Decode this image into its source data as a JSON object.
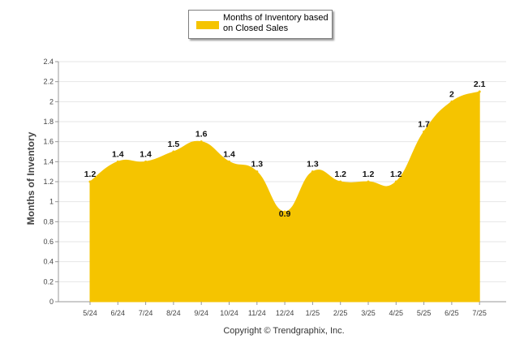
{
  "chart_data": {
    "type": "area",
    "categories": [
      "5/24",
      "6/24",
      "7/24",
      "8/24",
      "9/24",
      "10/24",
      "11/24",
      "12/24",
      "1/25",
      "2/25",
      "3/25",
      "4/25",
      "5/25",
      "6/25",
      "7/25"
    ],
    "values": [
      1.2,
      1.4,
      1.4,
      1.5,
      1.6,
      1.4,
      1.3,
      0.9,
      1.3,
      1.2,
      1.2,
      1.2,
      1.7,
      2,
      2.1
    ],
    "data_labels": [
      "1.2",
      "1.4",
      "1.4",
      "1.5",
      "1.6",
      "1.4",
      "1.3",
      "0.9",
      "1.3",
      "1.2",
      "1.2",
      "1.2",
      "1.7",
      "2",
      "2.1"
    ],
    "ylabel": "Months of Inventory",
    "ylim": [
      0,
      2.4
    ],
    "yticks": [
      "0",
      "0.2",
      "0.4",
      "0.6",
      "0.8",
      "1",
      "1.2",
      "1.4",
      "1.6",
      "1.8",
      "2",
      "2.2",
      "2.4"
    ],
    "grid": true,
    "legend": {
      "position": "top-center",
      "entries": [
        {
          "name": "Months of Inventory based on Closed Sales",
          "color": "#f5c400"
        }
      ]
    },
    "fill_color": "#f5c400"
  },
  "footer": {
    "copyright": "Copyright © Trendgraphix, Inc."
  }
}
